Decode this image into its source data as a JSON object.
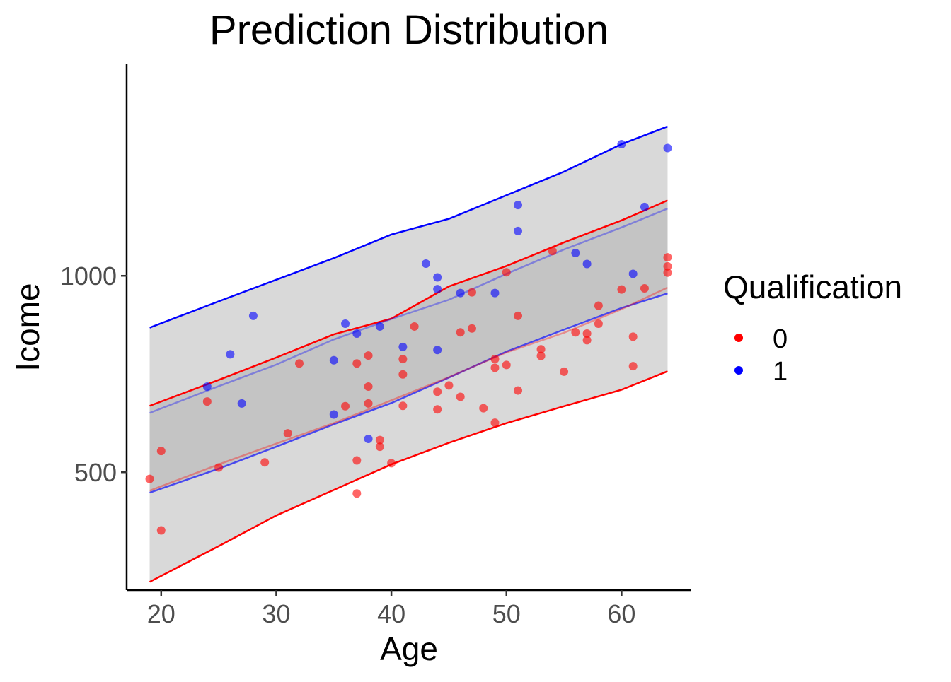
{
  "chart_data": {
    "type": "scatter",
    "title": "Prediction Distribution",
    "xlabel": "Age",
    "ylabel": "Icome",
    "xlim": [
      17,
      66
    ],
    "ylim": [
      200,
      1540
    ],
    "x_ticks": [
      20,
      30,
      40,
      50,
      60
    ],
    "y_ticks": [
      500,
      1000
    ],
    "grid": false,
    "legend": {
      "title": "Qualification",
      "position": "right",
      "entries": [
        {
          "label": "0",
          "color": "#ff0000"
        },
        {
          "label": "1",
          "color": "#0000ff"
        }
      ]
    },
    "colors": {
      "group0": "#ff0000",
      "group1": "#0000ff",
      "band_outer": "#d9d9d9",
      "band_inner": "#c4c4c4"
    },
    "bands": {
      "x": [
        19,
        25,
        30,
        35,
        40,
        45,
        50,
        55,
        60,
        64
      ],
      "group0_lower": [
        221,
        312,
        390,
        455,
        520,
        575,
        625,
        668,
        710,
        757
      ],
      "group0_upper": [
        669,
        735,
        792,
        851,
        891,
        973,
        1025,
        1085,
        1141,
        1192
      ],
      "group1_lower": [
        448,
        509,
        565,
        622,
        676,
        741,
        807,
        863,
        918,
        955
      ],
      "group1_upper": [
        651,
        719,
        774,
        838,
        890,
        939,
        1005,
        1067,
        1123,
        1171
      ],
      "group1_top": [
        868,
        935,
        990,
        1045,
        1105,
        1145,
        1205,
        1265,
        1335,
        1380
      ],
      "group0_mid": [
        453,
        520,
        573,
        625,
        683,
        742,
        805,
        855,
        915,
        970
      ]
    },
    "series": [
      {
        "name": "0",
        "points": [
          [
            19,
            483
          ],
          [
            20,
            554
          ],
          [
            20,
            352
          ],
          [
            24,
            680
          ],
          [
            25,
            512
          ],
          [
            29,
            525
          ],
          [
            31,
            599
          ],
          [
            32,
            777
          ],
          [
            36,
            668
          ],
          [
            37,
            777
          ],
          [
            37,
            530
          ],
          [
            37,
            446
          ],
          [
            38,
            797
          ],
          [
            38,
            718
          ],
          [
            38,
            675
          ],
          [
            39,
            582
          ],
          [
            39,
            565
          ],
          [
            40,
            523
          ],
          [
            41,
            788
          ],
          [
            41,
            749
          ],
          [
            41,
            669
          ],
          [
            42,
            871
          ],
          [
            44,
            705
          ],
          [
            44,
            660
          ],
          [
            45,
            721
          ],
          [
            46,
            856
          ],
          [
            46,
            692
          ],
          [
            47,
            958
          ],
          [
            47,
            866
          ],
          [
            48,
            663
          ],
          [
            49,
            788
          ],
          [
            49,
            766
          ],
          [
            49,
            626
          ],
          [
            50,
            1009
          ],
          [
            50,
            773
          ],
          [
            51,
            898
          ],
          [
            51,
            708
          ],
          [
            53,
            813
          ],
          [
            53,
            796
          ],
          [
            54,
            1063
          ],
          [
            55,
            756
          ],
          [
            56,
            856
          ],
          [
            57,
            853
          ],
          [
            57,
            836
          ],
          [
            58,
            924
          ],
          [
            58,
            878
          ],
          [
            60,
            965
          ],
          [
            61,
            845
          ],
          [
            61,
            770
          ],
          [
            62,
            968
          ],
          [
            64,
            1047
          ],
          [
            64,
            1024
          ],
          [
            64,
            1008
          ]
        ]
      },
      {
        "name": "1",
        "points": [
          [
            24,
            718
          ],
          [
            26,
            800
          ],
          [
            27,
            675
          ],
          [
            28,
            898
          ],
          [
            35,
            785
          ],
          [
            35,
            647
          ],
          [
            36,
            878
          ],
          [
            37,
            853
          ],
          [
            38,
            585
          ],
          [
            39,
            871
          ],
          [
            41,
            819
          ],
          [
            43,
            1031
          ],
          [
            44,
            996
          ],
          [
            44,
            966
          ],
          [
            44,
            811
          ],
          [
            46,
            956
          ],
          [
            49,
            956
          ],
          [
            51,
            1180
          ],
          [
            51,
            1114
          ],
          [
            56,
            1058
          ],
          [
            57,
            1030
          ],
          [
            60,
            1335
          ],
          [
            61,
            1005
          ],
          [
            62,
            1175
          ],
          [
            64,
            1325
          ]
        ]
      }
    ]
  }
}
